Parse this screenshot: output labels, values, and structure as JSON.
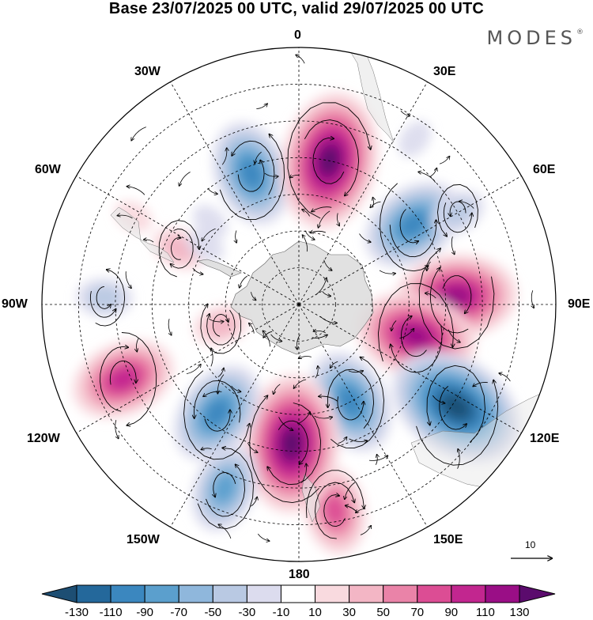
{
  "title": "Base 23/07/2025 00 UTC, valid 29/07/2025 00 UTC",
  "brand": "MODES",
  "brand_mark": "®",
  "longitude_labels": {
    "lon_0": "0",
    "lon_30e": "30E",
    "lon_60e": "60E",
    "lon_90e": "90E",
    "lon_120e": "120E",
    "lon_150e": "150E",
    "lon_180": "180",
    "lon_150w": "150W",
    "lon_120w": "120W",
    "lon_90w": "90W",
    "lon_60w": "60W",
    "lon_30w": "30W"
  },
  "reference_vector": "10",
  "colorbar": {
    "colors": [
      "#1d4e73",
      "#24689b",
      "#3b87bf",
      "#5b9fcd",
      "#8fb7dc",
      "#b9c9e3",
      "#dcdcee",
      "#ffffff",
      "#f9dadf",
      "#f3b6c5",
      "#ea83a8",
      "#dc4d94",
      "#c2268f",
      "#9a0e86",
      "#5b0b6d"
    ],
    "tick_labels": [
      "-130",
      "-110",
      "-90",
      "-70",
      "-50",
      "-30",
      "-10",
      "10",
      "30",
      "50",
      "70",
      "90",
      "110",
      "130"
    ]
  },
  "anomaly_centers": [
    {
      "name": "neg-1",
      "lon": -20,
      "lat": -52,
      "value": -90
    },
    {
      "name": "pos-1",
      "lon": 12,
      "lat": -50,
      "value": 130
    },
    {
      "name": "neg-2",
      "lon": 55,
      "lat": -52,
      "value": -90
    },
    {
      "name": "pos-2",
      "lon": 87,
      "lat": -47,
      "value": 110
    },
    {
      "name": "pos-3",
      "lon": 105,
      "lat": -57,
      "value": 110
    },
    {
      "name": "neg-3",
      "lon": 123,
      "lat": -39,
      "value": -130
    },
    {
      "name": "neg-4",
      "lon": 152,
      "lat": -60,
      "value": -90
    },
    {
      "name": "pos-4",
      "lon": 170,
      "lat": -33,
      "value": 70
    },
    {
      "name": "pos-5",
      "lon": -177,
      "lat": -52,
      "value": 130
    },
    {
      "name": "neg-5",
      "lon": -143,
      "lat": -53,
      "value": -90
    },
    {
      "name": "neg-6",
      "lon": -158,
      "lat": -36,
      "value": -70
    },
    {
      "name": "pos-6",
      "lon": -113,
      "lat": -38,
      "value": 90
    },
    {
      "name": "pos-7",
      "lon": -105,
      "lat": -68,
      "value": 30
    },
    {
      "name": "neg-7",
      "lon": -88,
      "lat": -37,
      "value": -30
    },
    {
      "name": "pos-8",
      "lon": -65,
      "lat": -54,
      "value": 30
    },
    {
      "name": "pos-9",
      "lon": -62,
      "lat": -39,
      "value": 20
    },
    {
      "name": "neg-8",
      "lon": -47,
      "lat": -57,
      "value": -10
    },
    {
      "name": "neg-9",
      "lon": -58,
      "lat": -60,
      "value": -10
    },
    {
      "name": "neg-10",
      "lon": 35,
      "lat": -35,
      "value": -10
    },
    {
      "name": "neg-11",
      "lon": 60,
      "lat": -40,
      "value": -30
    }
  ]
}
